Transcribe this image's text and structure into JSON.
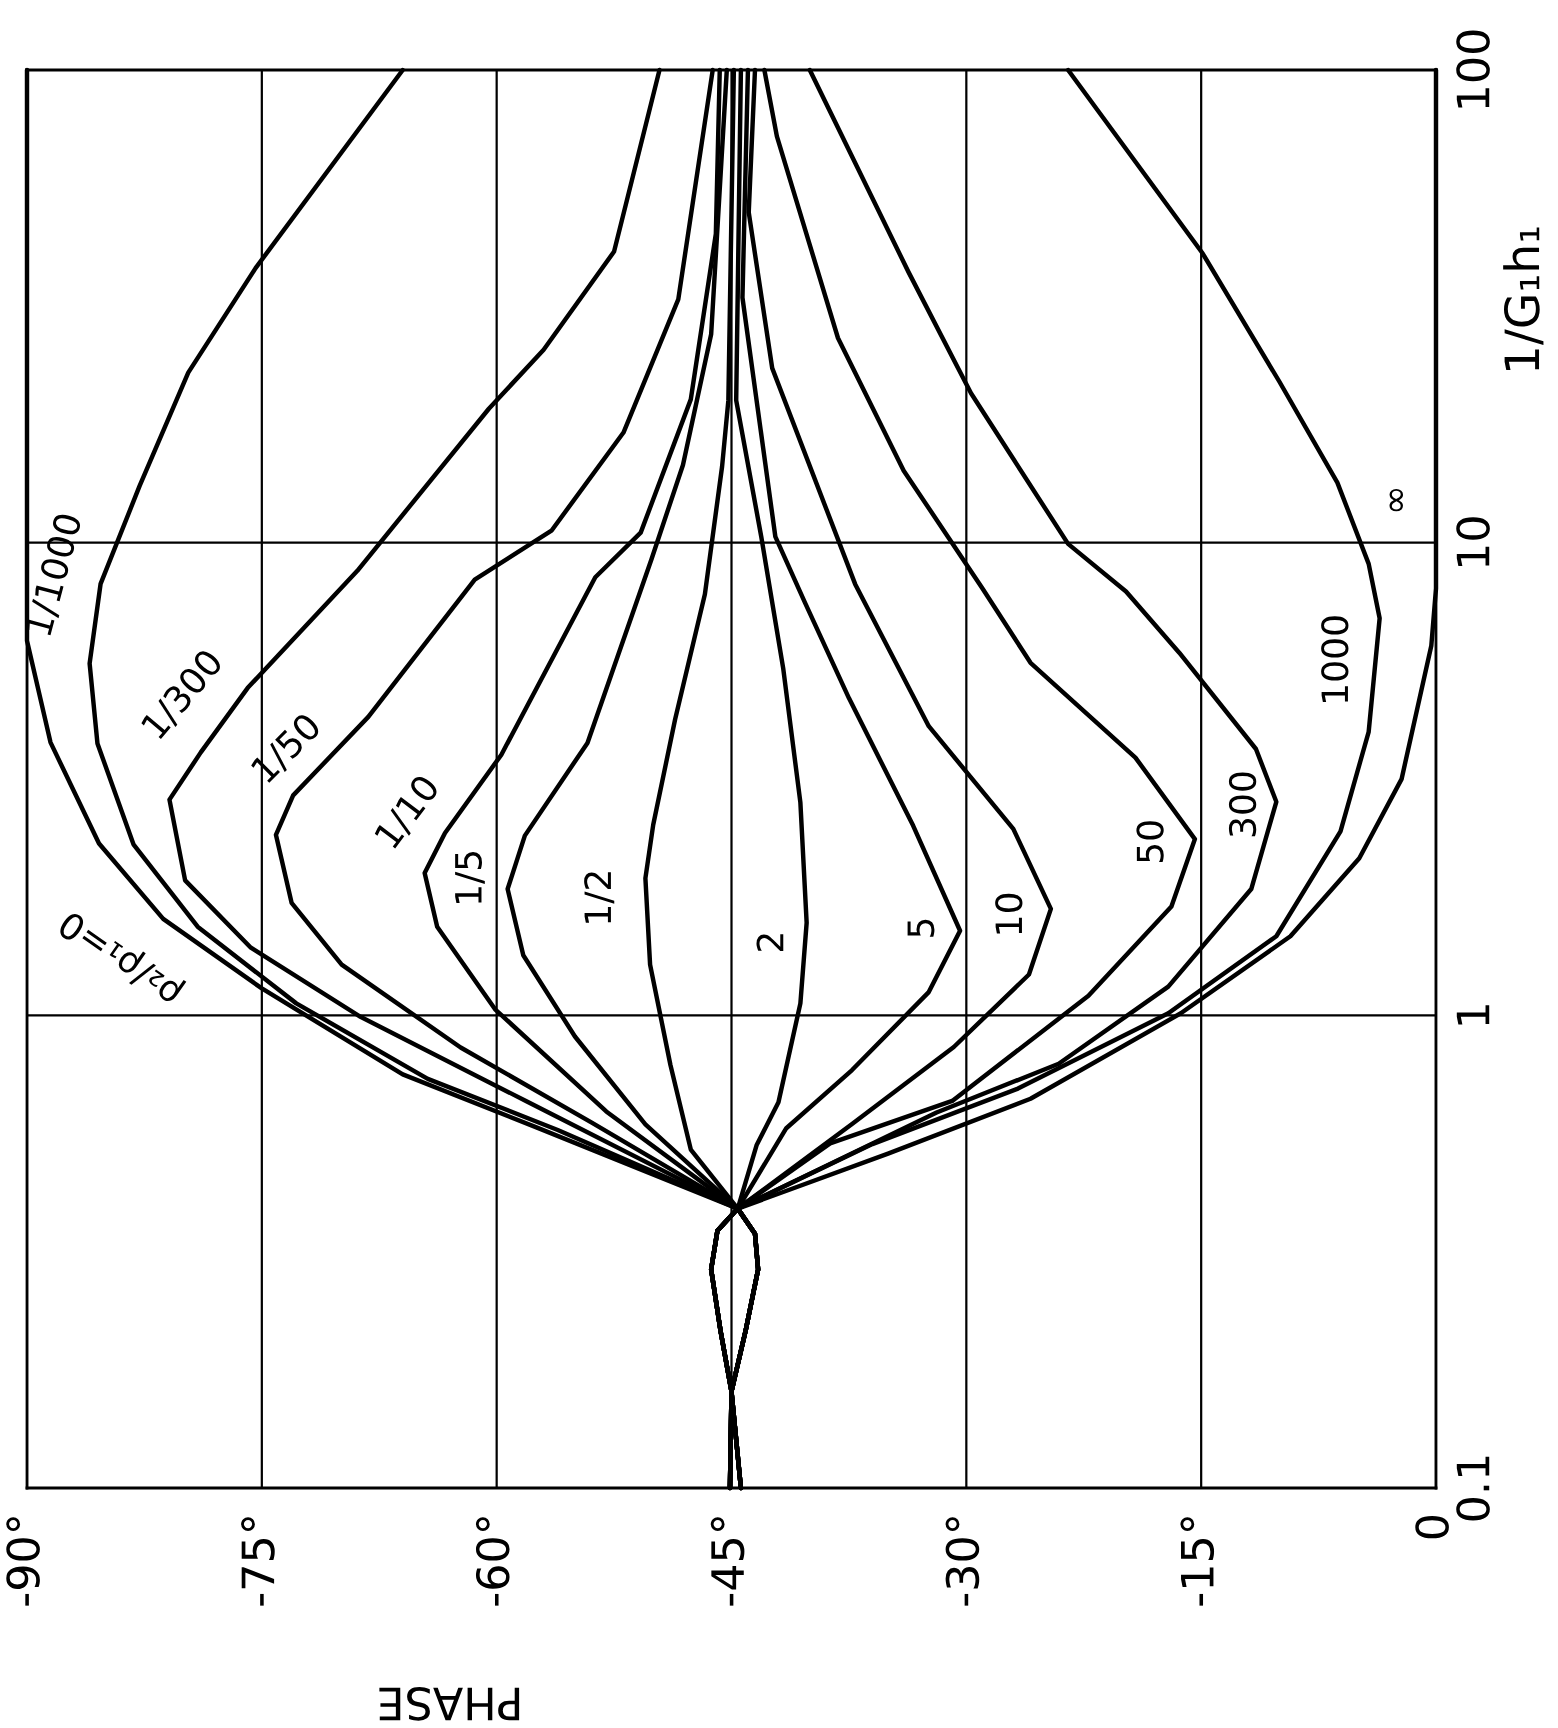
{
  "chart_data": {
    "type": "line",
    "xlabel": "PHASE",
    "ylabel": "1/G₁h₁",
    "log": "y",
    "grid": true,
    "xlim": [
      -90,
      0
    ],
    "ylim": [
      0.1,
      100
    ],
    "xticks": [
      {
        "value": -90,
        "label": "-90°"
      },
      {
        "value": -75,
        "label": "-75°"
      },
      {
        "value": -60,
        "label": "-60°"
      },
      {
        "value": -45,
        "label": "-45°"
      },
      {
        "value": -30,
        "label": "-30°"
      },
      {
        "value": -15,
        "label": "-15°"
      },
      0
    ],
    "yticks": [
      0.1,
      1,
      10,
      100
    ],
    "series": [
      {
        "color": "#000000",
        "x": [
          -45.1,
          -45,
          -44.1,
          -43.3,
          -43.5,
          -44.6,
          -57.5,
          -66,
          -75,
          -81.3,
          -85.4,
          -88.5,
          -90,
          -90
        ],
        "values": [
          0.1,
          0.16,
          0.215,
          0.29,
          0.345,
          0.39,
          0.58,
          0.75,
          1.14,
          1.6,
          2.31,
          3.78,
          6.2,
          100
        ]
      },
      {
        "color": "#000000",
        "x": [
          -45.1,
          -45,
          -44.1,
          -43.3,
          -43.5,
          -44.6,
          -56.1,
          -64.4,
          -72.8,
          -79.1,
          -83.2,
          -85.5,
          -86,
          -85.3,
          -82.8,
          -79.7,
          -75.4,
          -66
        ],
        "values": [
          0.1,
          0.16,
          0.215,
          0.29,
          0.345,
          0.39,
          0.572,
          0.734,
          1.06,
          1.54,
          2.3,
          3.76,
          5.55,
          8.18,
          13.2,
          22.9,
          38.1,
          100
        ]
      },
      {
        "color": "#000000",
        "x": [
          -45.1,
          -45,
          -44.1,
          -43.3,
          -43.5,
          -44.6,
          -58.1,
          -68.7,
          -75.7,
          -79.9,
          -80.9,
          -78.9,
          -75.9,
          -68.9,
          -60.5,
          -57,
          -52.5,
          -49.6
        ],
        "values": [
          0.1,
          0.16,
          0.215,
          0.29,
          0.345,
          0.39,
          0.658,
          0.993,
          1.39,
          1.93,
          2.86,
          3.6,
          4.93,
          8.72,
          19.2,
          25.6,
          41.3,
          100
        ]
      },
      {
        "color": "#000000",
        "x": [
          -45.1,
          -45,
          -44.1,
          -43.3,
          -43.5,
          -44.6,
          -53.9,
          -62.3,
          -69.9,
          -73.1,
          -74.1,
          -73,
          -68.2,
          -61.4,
          -56.5,
          -51.9,
          -48.4,
          -46.2
        ],
        "values": [
          0.1,
          0.16,
          0.215,
          0.29,
          0.345,
          0.39,
          0.592,
          0.855,
          1.28,
          1.73,
          2.41,
          2.92,
          4.28,
          8.35,
          10.6,
          17.1,
          32.7,
          100
        ]
      },
      {
        "color": "#000000",
        "x": [
          -45.1,
          -45,
          -44.1,
          -43.3,
          -43.5,
          -44.6,
          -53,
          -60.1,
          -63.8,
          -64.6,
          -63.3,
          -59.7,
          -53.7,
          -50.8,
          -47.6,
          -46,
          -45.75
        ],
        "values": [
          0.1,
          0.16,
          0.215,
          0.29,
          0.345,
          0.39,
          0.626,
          1.03,
          1.54,
          2,
          2.43,
          3.56,
          8.45,
          10.5,
          20.1,
          45,
          100
        ]
      },
      {
        "color": "#000000",
        "x": [
          -45.1,
          -45,
          -44.1,
          -43.3,
          -43.5,
          -44.6,
          -50.5,
          -55,
          -58.3,
          -59.3,
          -58.2,
          -54.2,
          -50.1,
          -48.1,
          -46.3,
          -45.3
        ],
        "values": [
          0.1,
          0.16,
          0.215,
          0.29,
          0.345,
          0.39,
          0.588,
          0.902,
          1.34,
          1.85,
          2.4,
          3.77,
          9.25,
          14.6,
          27.6,
          100
        ]
      },
      {
        "color": "#000000",
        "x": [
          -45.1,
          -45,
          -44.1,
          -43.3,
          -43.5,
          -44.6,
          -47.6,
          -48.9,
          -50.2,
          -50.5,
          -50,
          -48.6,
          -46.7,
          -45.6,
          -45.2,
          -44.85
        ],
        "values": [
          0.1,
          0.16,
          0.215,
          0.29,
          0.345,
          0.39,
          0.52,
          0.785,
          1.28,
          1.95,
          2.53,
          4.23,
          7.78,
          14.5,
          20,
          100
        ]
      },
      {
        "color": "#000000",
        "x": [
          -44.4,
          -45,
          -45.7,
          -46.3,
          -45.9,
          -44.6,
          -43.4,
          -42,
          -40.6,
          -40.2,
          -40.6,
          -41.7,
          -43.1,
          -44.7,
          -44.4
        ],
        "values": [
          0.1,
          0.16,
          0.215,
          0.29,
          0.35,
          0.39,
          0.531,
          0.655,
          1.06,
          1.57,
          2.82,
          5.43,
          10.3,
          20,
          100
        ]
      },
      {
        "color": "#000000",
        "x": [
          -44.4,
          -45,
          -45.7,
          -46.3,
          -45.9,
          -44.6,
          -41.5,
          -37.3,
          -32.4,
          -30.4,
          -33.4,
          -37.5,
          -40.3,
          -42.2,
          -44.3,
          -43.95
        ],
        "values": [
          0.1,
          0.16,
          0.215,
          0.29,
          0.35,
          0.39,
          0.577,
          0.766,
          1.12,
          1.51,
          2.52,
          4.69,
          7.46,
          10.3,
          33,
          100
        ]
      },
      {
        "color": "#000000",
        "x": [
          -44.4,
          -45,
          -45.7,
          -46.3,
          -45.9,
          -44.6,
          -37.3,
          -30.8,
          -26,
          -24.6,
          -27,
          -32.4,
          -37.1,
          -42.4,
          -43.9,
          -43.5
        ],
        "values": [
          0.1,
          0.16,
          0.215,
          0.29,
          0.35,
          0.39,
          0.589,
          0.857,
          1.22,
          1.68,
          2.48,
          4.09,
          8.17,
          23.4,
          50,
          100
        ]
      },
      {
        "color": "#000000",
        "x": [
          -44.4,
          -45,
          -45.7,
          -46.3,
          -45.9,
          -44.6,
          -38.7,
          -30.9,
          -22.2,
          -16.9,
          -15.4,
          -19.2,
          -25.9,
          -29,
          -34,
          -38.2,
          -42.1,
          -42.9
        ],
        "values": [
          0.1,
          0.16,
          0.215,
          0.29,
          0.35,
          0.39,
          0.536,
          0.659,
          1.1,
          1.7,
          2.36,
          3.51,
          5.57,
          8.03,
          14.2,
          27.1,
          72.4,
          100
        ]
      },
      {
        "color": "#000000",
        "x": [
          -44.4,
          -45,
          -45.7,
          -46.3,
          -45.9,
          -44.6,
          -31.9,
          -24.1,
          -17.1,
          -11.8,
          -10.2,
          -11.5,
          -16.4,
          -19.8,
          -23.5,
          -29.7,
          -33.7,
          -40
        ],
        "values": [
          0.1,
          0.16,
          0.215,
          0.29,
          0.35,
          0.39,
          0.623,
          0.79,
          1.15,
          1.85,
          2.83,
          3.66,
          5.85,
          7.88,
          9.94,
          20.7,
          37.4,
          100
        ]
      },
      {
        "color": "#000000",
        "x": [
          -44.4,
          -45,
          -45.7,
          -46.3,
          -45.9,
          -44.6,
          -36,
          -26.7,
          -17.1,
          -10.2,
          -6.1,
          -4.3,
          -3.6,
          -4.3,
          -6.3,
          -10,
          -14.9,
          -23.5
        ],
        "values": [
          0.1,
          0.16,
          0.215,
          0.29,
          0.35,
          0.39,
          0.534,
          0.7,
          1.01,
          1.47,
          2.45,
          3.98,
          6.92,
          9.02,
          13.4,
          21.9,
          40.9,
          100
        ]
      },
      {
        "color": "#000000",
        "x": [
          -44.4,
          -45,
          -45.7,
          -46.3,
          -45.9,
          -44.6,
          -35,
          -25.9,
          -16.3,
          -9.3,
          -4.9,
          -2.2,
          -0.3,
          0,
          0,
          0
        ],
        "values": [
          0.1,
          0.16,
          0.215,
          0.29,
          0.35,
          0.39,
          0.51,
          0.666,
          1.01,
          1.47,
          2.15,
          3.16,
          6.05,
          8,
          12.3,
          100
        ]
      }
    ],
    "annotations": [
      {
        "text": "ρ₂/ρ₁=0",
        "x": -81.3,
        "y": 1.6
      },
      {
        "text": "1/1000",
        "x": -85.3,
        "y": 8.18
      },
      {
        "text": "1/300",
        "x": -75.9,
        "y": 4.93
      },
      {
        "text": "1/50",
        "x": -68.2,
        "y": 4.28
      },
      {
        "text": "1/10",
        "x": -63.3,
        "y": 2.43
      },
      {
        "text": "1/5",
        "x": -59.3,
        "y": 1.85
      },
      {
        "text": "1/2",
        "x": -50.5,
        "y": 1.95
      },
      {
        "text": "2",
        "x": -40.2,
        "y": 1.57
      },
      {
        "text": "5",
        "x": -30.4,
        "y": 1.51
      },
      {
        "text": "10",
        "x": -24.6,
        "y": 1.68
      },
      {
        "text": "50",
        "x": -15.4,
        "y": 2.36
      },
      {
        "text": "300",
        "x": -10.2,
        "y": 2.83
      },
      {
        "text": "1000",
        "x": -3.6,
        "y": 6.92
      },
      {
        "text": "∞",
        "x": 0,
        "y": 12.3
      }
    ]
  }
}
